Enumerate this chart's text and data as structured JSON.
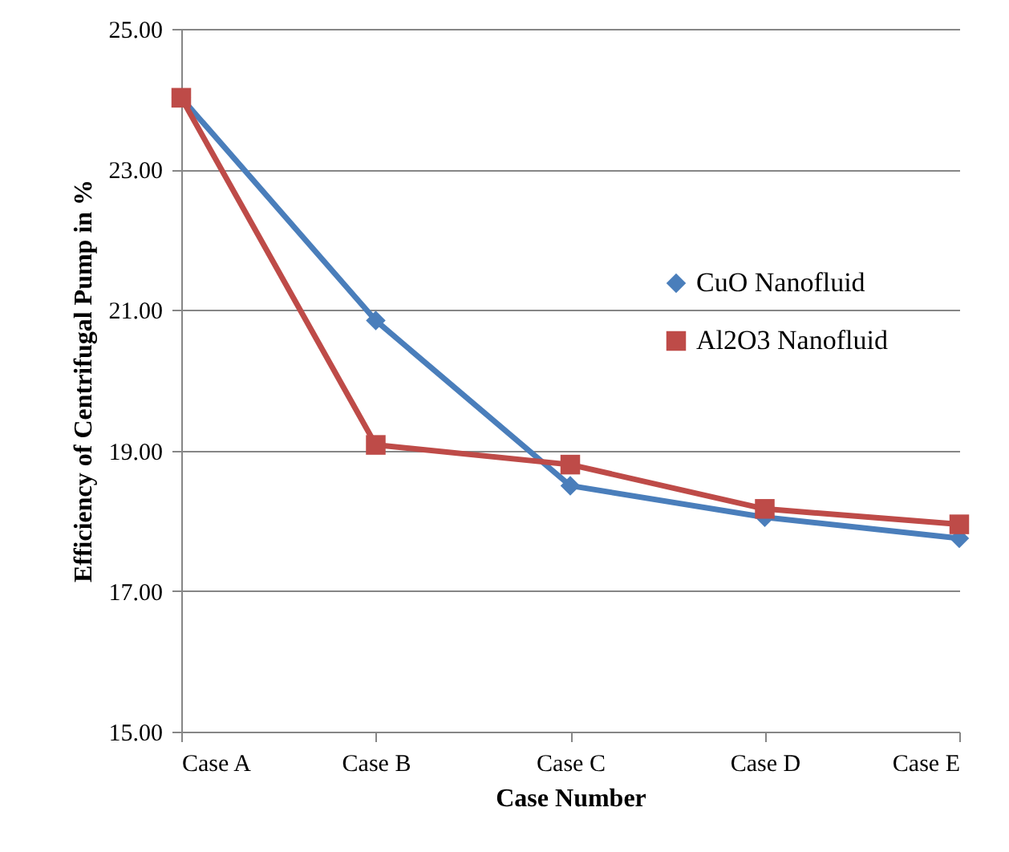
{
  "chart_data": {
    "type": "line",
    "xlabel": "Case Number",
    "ylabel": "Efficiency of Centrifugal Pump in %",
    "categories": [
      "Case A",
      "Case B",
      "Case C",
      "Case D",
      "Case E"
    ],
    "series": [
      {
        "name": "CuO Nanofluid",
        "color": "#4a7ebb",
        "marker": "diamond",
        "values": [
          24.02,
          20.85,
          18.5,
          18.05,
          17.75
        ]
      },
      {
        "name": "Al2O3 Nanofluid",
        "color": "#be4b48",
        "marker": "square",
        "values": [
          24.02,
          19.08,
          18.8,
          18.17,
          17.95
        ]
      }
    ],
    "ylim": [
      15,
      25
    ],
    "yticks": [
      {
        "value": 15,
        "label": "15.00"
      },
      {
        "value": 17,
        "label": "17.00"
      },
      {
        "value": 19,
        "label": "19.00"
      },
      {
        "value": 21,
        "label": "21.00"
      },
      {
        "value": 23,
        "label": "23.00"
      },
      {
        "value": 25,
        "label": "25.00"
      }
    ],
    "grid": "y",
    "legend": "top right"
  }
}
